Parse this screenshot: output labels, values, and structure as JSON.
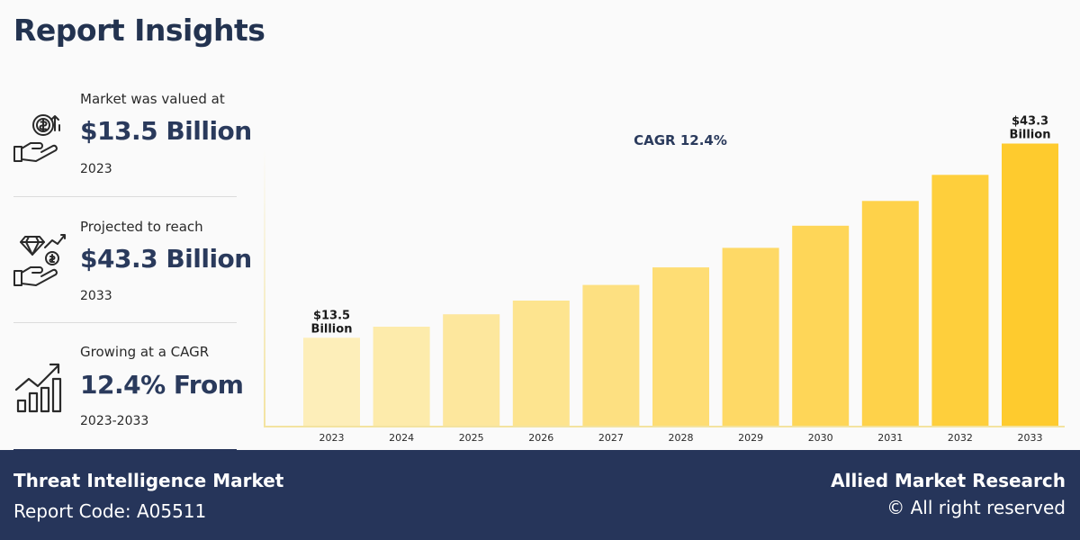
{
  "page": {
    "title": "Report Insights"
  },
  "stats": [
    {
      "label": "Market was valued at",
      "value": "$13.5 Billion",
      "sub": "2023",
      "icon": "money-hand-icon"
    },
    {
      "label": "Projected to reach",
      "value": "$43.3 Billion",
      "sub": "2033",
      "icon": "diamond-hand-icon"
    },
    {
      "label": "Growing at a CAGR",
      "value": "12.4% From",
      "sub": "2023-2033",
      "icon": "growth-chart-icon"
    }
  ],
  "chart_data": {
    "type": "bar",
    "title": "CAGR 12.4%",
    "categories": [
      "2023",
      "2024",
      "2025",
      "2026",
      "2027",
      "2028",
      "2029",
      "2030",
      "2031",
      "2032",
      "2033"
    ],
    "values": [
      13.5,
      15.2,
      17.1,
      19.2,
      21.6,
      24.3,
      27.3,
      30.7,
      34.5,
      38.5,
      43.3
    ],
    "data_labels": [
      {
        "index": 0,
        "lines": [
          "$13.5",
          "Billion"
        ]
      },
      {
        "index": 10,
        "lines": [
          "$43.3",
          "Billion"
        ]
      }
    ],
    "ylim": [
      0,
      46
    ],
    "colors": {
      "start": "#fdeeb9",
      "end": "#fecb2e"
    }
  },
  "footer": {
    "market_name": "Threat Intelligence Market",
    "report_code": "Report Code: A05511",
    "brand": "Allied Market Research",
    "rights": "© All right reserved"
  }
}
